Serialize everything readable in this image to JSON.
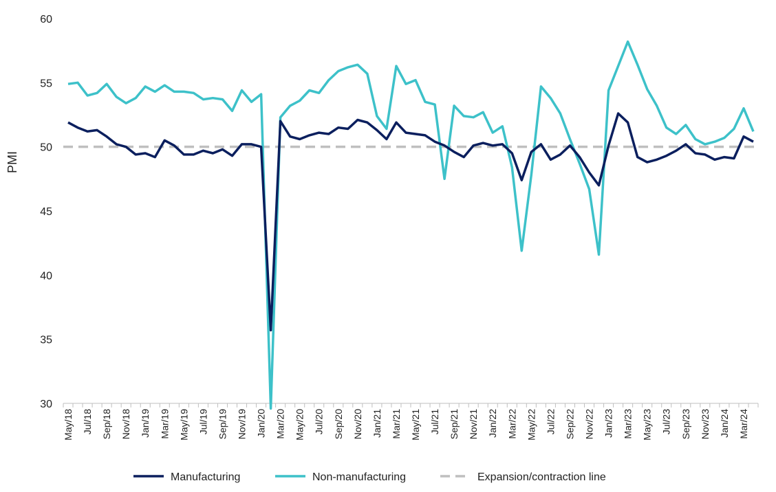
{
  "chart_data": {
    "type": "line",
    "title": "",
    "xlabel": "",
    "ylabel": "PMI",
    "ylim": [
      30,
      60
    ],
    "yticks": [
      30,
      35,
      40,
      45,
      50,
      55,
      60
    ],
    "grid": false,
    "legend_position": "bottom",
    "x": [
      "May/18",
      "Jun/18",
      "Jul/18",
      "Aug/18",
      "Sep/18",
      "Oct/18",
      "Nov/18",
      "Dec/18",
      "Jan/19",
      "Feb/19",
      "Mar/19",
      "Apr/19",
      "May/19",
      "Jun/19",
      "Jul/19",
      "Aug/19",
      "Sep/19",
      "Oct/19",
      "Nov/19",
      "Dec/19",
      "Jan/20",
      "Feb/20",
      "Mar/20",
      "Apr/20",
      "May/20",
      "Jun/20",
      "Jul/20",
      "Aug/20",
      "Sep/20",
      "Oct/20",
      "Nov/20",
      "Dec/20",
      "Jan/21",
      "Feb/21",
      "Mar/21",
      "Apr/21",
      "May/21",
      "Jun/21",
      "Jul/21",
      "Aug/21",
      "Sep/21",
      "Oct/21",
      "Nov/21",
      "Dec/21",
      "Jan/22",
      "Feb/22",
      "Mar/22",
      "Apr/22",
      "May/22",
      "Jun/22",
      "Jul/22",
      "Aug/22",
      "Sep/22",
      "Oct/22",
      "Nov/22",
      "Dec/22",
      "Jan/23",
      "Feb/23",
      "Mar/23",
      "Apr/23",
      "May/23",
      "Jun/23",
      "Jul/23",
      "Aug/23",
      "Sep/23",
      "Oct/23",
      "Nov/23",
      "Dec/23",
      "Jan/24",
      "Feb/24",
      "Mar/24",
      "Apr/24"
    ],
    "series": [
      {
        "name": "Manufacturing",
        "color": "#0b1f5e",
        "values": [
          51.9,
          51.5,
          51.2,
          51.3,
          50.8,
          50.2,
          50.0,
          49.4,
          49.5,
          49.2,
          50.5,
          50.1,
          49.4,
          49.4,
          49.7,
          49.5,
          49.8,
          49.3,
          50.2,
          50.2,
          50.0,
          35.7,
          52.0,
          50.8,
          50.6,
          50.9,
          51.1,
          51.0,
          51.5,
          51.4,
          52.1,
          51.9,
          51.3,
          50.6,
          51.9,
          51.1,
          51.0,
          50.9,
          50.4,
          50.1,
          49.6,
          49.2,
          50.1,
          50.3,
          50.1,
          50.2,
          49.5,
          47.4,
          49.6,
          50.2,
          49.0,
          49.4,
          50.1,
          49.2,
          48.0,
          47.0,
          50.1,
          52.6,
          51.9,
          49.2,
          48.8,
          49.0,
          49.3,
          49.7,
          50.2,
          49.5,
          49.4,
          49.0,
          49.2,
          49.1,
          50.8,
          50.4
        ]
      },
      {
        "name": "Non-manufacturing",
        "color": "#3dc1c9",
        "values": [
          54.9,
          55.0,
          54.0,
          54.2,
          54.9,
          53.9,
          53.4,
          53.8,
          54.7,
          54.3,
          54.8,
          54.3,
          54.3,
          54.2,
          53.7,
          53.8,
          53.7,
          52.8,
          54.4,
          53.5,
          54.1,
          29.6,
          52.3,
          53.2,
          53.6,
          54.4,
          54.2,
          55.2,
          55.9,
          56.2,
          56.4,
          55.7,
          52.4,
          51.4,
          56.3,
          54.9,
          55.2,
          53.5,
          53.3,
          47.5,
          53.2,
          52.4,
          52.3,
          52.7,
          51.1,
          51.6,
          48.4,
          41.9,
          47.8,
          54.7,
          53.8,
          52.6,
          50.6,
          48.7,
          46.7,
          41.6,
          54.4,
          56.3,
          58.2,
          56.4,
          54.5,
          53.2,
          51.5,
          51.0,
          51.7,
          50.6,
          50.2,
          50.4,
          50.7,
          51.4,
          53.0,
          51.2
        ]
      },
      {
        "name": "Expansion/contraction line",
        "color": "#bfbfbf",
        "constant": 50
      }
    ]
  }
}
